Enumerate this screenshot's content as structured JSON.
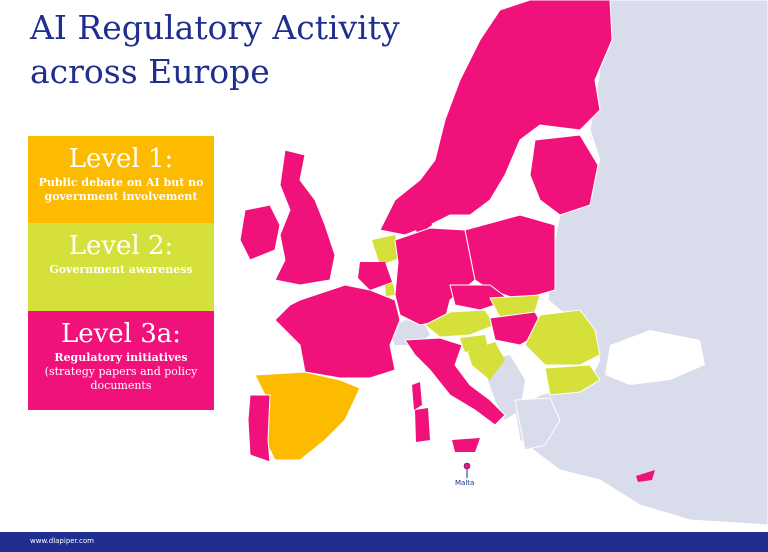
{
  "title_line1": "AI Regulatory Activity",
  "title_line2": "across Europe",
  "legend": {
    "level1": {
      "title": "Level 1:",
      "desc": "Public debate on AI but no government involvement",
      "color": "#fdbb00"
    },
    "level2": {
      "title": "Level 2:",
      "desc": "Government awareness",
      "color": "#d5e03a"
    },
    "level3a": {
      "title": "Level 3a:",
      "desc_bold": "Regulatory initiatives",
      "desc": "(strategy papers and policy documents",
      "color": "#f0117a"
    }
  },
  "map_labels": {
    "malta": "Malta"
  },
  "footer": {
    "url": "www.dlapiper.com"
  },
  "colors": {
    "navy": "#1f2e8f",
    "nonEU": "#d9dceb"
  }
}
